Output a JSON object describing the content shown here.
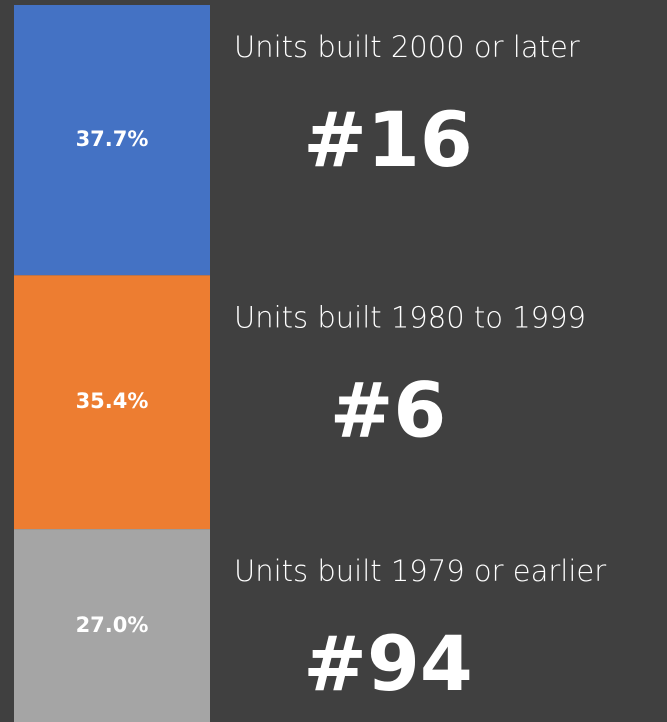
{
  "chart_data": {
    "type": "stacked_bar",
    "ylim": [
      0,
      100
    ],
    "series": [
      {
        "name": "Units built 2000 or later",
        "color": "#4472c4",
        "values": [
          37.7
        ],
        "value_labels": [
          "37.7%"
        ],
        "rank": "#16"
      },
      {
        "name": "Units built 1980 to 1999",
        "color": "#ed7d31",
        "values": [
          35.4
        ],
        "value_labels": [
          "35.4%"
        ],
        "rank": "#6"
      },
      {
        "name": "Units built 1979 or earlier",
        "color": "#a5a5a5",
        "values": [
          27.0
        ],
        "value_labels": [
          "27.0%"
        ],
        "rank": "#94"
      }
    ]
  }
}
